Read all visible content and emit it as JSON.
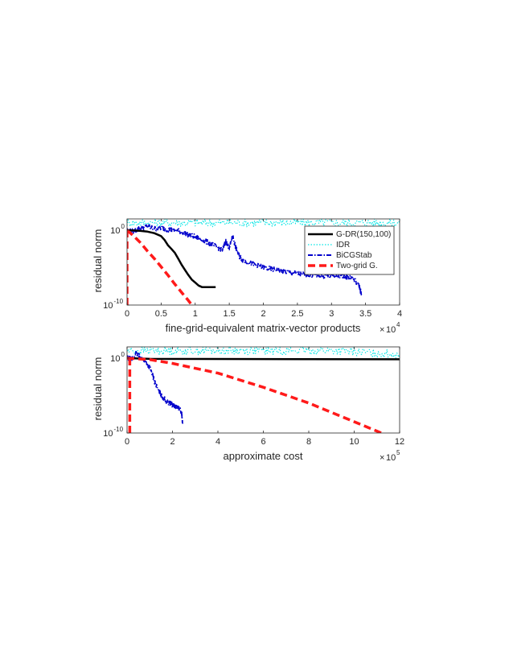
{
  "chart_data": [
    {
      "type": "line",
      "xlabel": "fine-grid-equivalent matrix-vector products",
      "ylabel": "residual norm",
      "x_multiplier": {
        "base": "10",
        "exponent": "4"
      },
      "xlim": [
        0,
        40000
      ],
      "ylim_log10": [
        -10,
        1.5
      ],
      "yscale": "log",
      "x_ticks": [
        {
          "value": 0,
          "label": "0"
        },
        {
          "value": 5000,
          "label": "0.5"
        },
        {
          "value": 10000,
          "label": "1"
        },
        {
          "value": 15000,
          "label": "1.5"
        },
        {
          "value": 20000,
          "label": "2"
        },
        {
          "value": 25000,
          "label": "2.5"
        },
        {
          "value": 30000,
          "label": "3"
        },
        {
          "value": 35000,
          "label": "3.5"
        },
        {
          "value": 40000,
          "label": "4"
        }
      ],
      "y_ticks": [
        {
          "log10": 0,
          "base": "10",
          "exponent": "0"
        },
        {
          "log10": -10,
          "base": "10",
          "exponent": "-10"
        }
      ],
      "legend": {
        "placement": "top-right",
        "entries": [
          "G-DR(150,100)",
          "IDR",
          "BiCGStab",
          "Two-grid G."
        ]
      },
      "series": [
        {
          "name": "G-DR(150,100)",
          "color": "#000000",
          "style": "solid",
          "points": [
            [
              0,
              0
            ],
            [
              1000,
              -0.05
            ],
            [
              2000,
              -0.1
            ],
            [
              3000,
              -0.2
            ],
            [
              4000,
              -0.4
            ],
            [
              5000,
              -0.8
            ],
            [
              5500,
              -1.3
            ],
            [
              6000,
              -2.0
            ],
            [
              6500,
              -2.5
            ],
            [
              7000,
              -3.0
            ],
            [
              7500,
              -3.8
            ],
            [
              8000,
              -4.6
            ],
            [
              8500,
              -5.3
            ],
            [
              9000,
              -6.0
            ],
            [
              9500,
              -6.6
            ],
            [
              10000,
              -7.0
            ],
            [
              10500,
              -7.4
            ],
            [
              11000,
              -7.6
            ],
            [
              11500,
              -7.6
            ],
            [
              12000,
              -7.6
            ],
            [
              13000,
              -7.6
            ]
          ]
        },
        {
          "name": "IDR",
          "color": "#00e5e5",
          "style": "dotted",
          "noisy": true,
          "points": [
            [
              0,
              1.0
            ],
            [
              10000,
              1.0
            ],
            [
              20000,
              1.0
            ],
            [
              30000,
              1.0
            ],
            [
              40000,
              1.0
            ]
          ]
        },
        {
          "name": "BiCGStab",
          "color": "#0000cc",
          "style": "dashdot",
          "noisy": true,
          "points": [
            [
              0,
              0
            ],
            [
              1000,
              -0.1
            ],
            [
              2000,
              0.3
            ],
            [
              3000,
              0.5
            ],
            [
              4000,
              0.2
            ],
            [
              5000,
              0.3
            ],
            [
              6000,
              0.1
            ],
            [
              7000,
              0
            ],
            [
              8000,
              -0.2
            ],
            [
              9000,
              -0.6
            ],
            [
              10000,
              -0.9
            ],
            [
              11000,
              -1.3
            ],
            [
              12000,
              -1.7
            ],
            [
              13000,
              -2.2
            ],
            [
              14000,
              -2.6
            ],
            [
              14500,
              -1.5
            ],
            [
              15000,
              -2.5
            ],
            [
              15500,
              -0.8
            ],
            [
              16000,
              -2.5
            ],
            [
              16500,
              -3.5
            ],
            [
              17000,
              -4.0
            ],
            [
              18000,
              -4.4
            ],
            [
              19000,
              -4.7
            ],
            [
              20000,
              -5.0
            ],
            [
              21000,
              -5.2
            ],
            [
              22000,
              -5.3
            ],
            [
              23000,
              -5.5
            ],
            [
              24000,
              -5.7
            ],
            [
              25000,
              -5.8
            ],
            [
              26000,
              -5.9
            ],
            [
              27000,
              -6.0
            ],
            [
              28000,
              -6.0
            ],
            [
              29000,
              -6.1
            ],
            [
              30000,
              -6.1
            ],
            [
              31000,
              -6.1
            ],
            [
              32000,
              -6.2
            ],
            [
              33000,
              -6.3
            ],
            [
              34000,
              -7.3
            ],
            [
              34400,
              -8.5
            ]
          ]
        },
        {
          "name": "Two-grid G.",
          "color": "#ff1a1a",
          "style": "dashed",
          "points": [
            [
              0,
              0
            ],
            [
              1000,
              -0.8
            ],
            [
              2000,
              -1.7
            ],
            [
              3000,
              -2.8
            ],
            [
              4000,
              -3.8
            ],
            [
              5000,
              -4.9
            ],
            [
              6000,
              -6.0
            ],
            [
              7000,
              -7.2
            ],
            [
              8000,
              -8.3
            ],
            [
              9000,
              -9.4
            ],
            [
              9500,
              -10.0
            ]
          ],
          "extra_segment": [
            [
              0,
              -10.0
            ],
            [
              0,
              0
            ]
          ]
        }
      ]
    },
    {
      "type": "line",
      "xlabel": "approximate cost",
      "ylabel": "residual norm",
      "x_multiplier": {
        "base": "10",
        "exponent": "5"
      },
      "xlim": [
        0,
        1200000
      ],
      "ylim_log10": [
        -10,
        1.5
      ],
      "yscale": "log",
      "x_ticks": [
        {
          "value": 0,
          "label": "0"
        },
        {
          "value": 200000,
          "label": "2"
        },
        {
          "value": 400000,
          "label": "4"
        },
        {
          "value": 600000,
          "label": "6"
        },
        {
          "value": 800000,
          "label": "8"
        },
        {
          "value": 1000000,
          "label": "10"
        },
        {
          "value": 1200000,
          "label": "12"
        }
      ],
      "y_ticks": [
        {
          "log10": 0,
          "base": "10",
          "exponent": "0"
        },
        {
          "log10": -10,
          "base": "10",
          "exponent": "-10"
        }
      ],
      "series": [
        {
          "name": "G-DR(150,100)",
          "color": "#000000",
          "style": "solid",
          "points": [
            [
              0,
              0
            ],
            [
              50000,
              -0.05
            ],
            [
              100000,
              -0.1
            ],
            [
              1200000,
              -0.15
            ]
          ]
        },
        {
          "name": "IDR",
          "color": "#00e5e5",
          "style": "dotted",
          "noisy": true,
          "points": [
            [
              0,
              1.0
            ],
            [
              300000,
              1.0
            ],
            [
              600000,
              1.0
            ],
            [
              900000,
              1.0
            ],
            [
              1200000,
              0.5
            ]
          ]
        },
        {
          "name": "BiCGStab",
          "color": "#0000cc",
          "style": "dashdot",
          "noisy": true,
          "points": [
            [
              0,
              0
            ],
            [
              20000,
              -0.2
            ],
            [
              40000,
              0.6
            ],
            [
              60000,
              0.1
            ],
            [
              80000,
              -0.4
            ],
            [
              100000,
              -1.2
            ],
            [
              120000,
              -3.0
            ],
            [
              140000,
              -4.5
            ],
            [
              160000,
              -5.3
            ],
            [
              180000,
              -6.0
            ],
            [
              200000,
              -6.2
            ],
            [
              220000,
              -6.5
            ],
            [
              240000,
              -7.2
            ],
            [
              245000,
              -8.8
            ]
          ]
        },
        {
          "name": "Two-grid G.",
          "color": "#ff1a1a",
          "style": "dashed",
          "points": [
            [
              0,
              0
            ],
            [
              100000,
              -0.2
            ],
            [
              200000,
              -0.7
            ],
            [
              400000,
              -2.0
            ],
            [
              600000,
              -3.9
            ],
            [
              800000,
              -6.0
            ],
            [
              1000000,
              -8.5
            ],
            [
              1120000,
              -10.0
            ]
          ],
          "extra_segment": [
            [
              12000,
              -10.0
            ],
            [
              12000,
              0
            ]
          ]
        }
      ]
    }
  ]
}
